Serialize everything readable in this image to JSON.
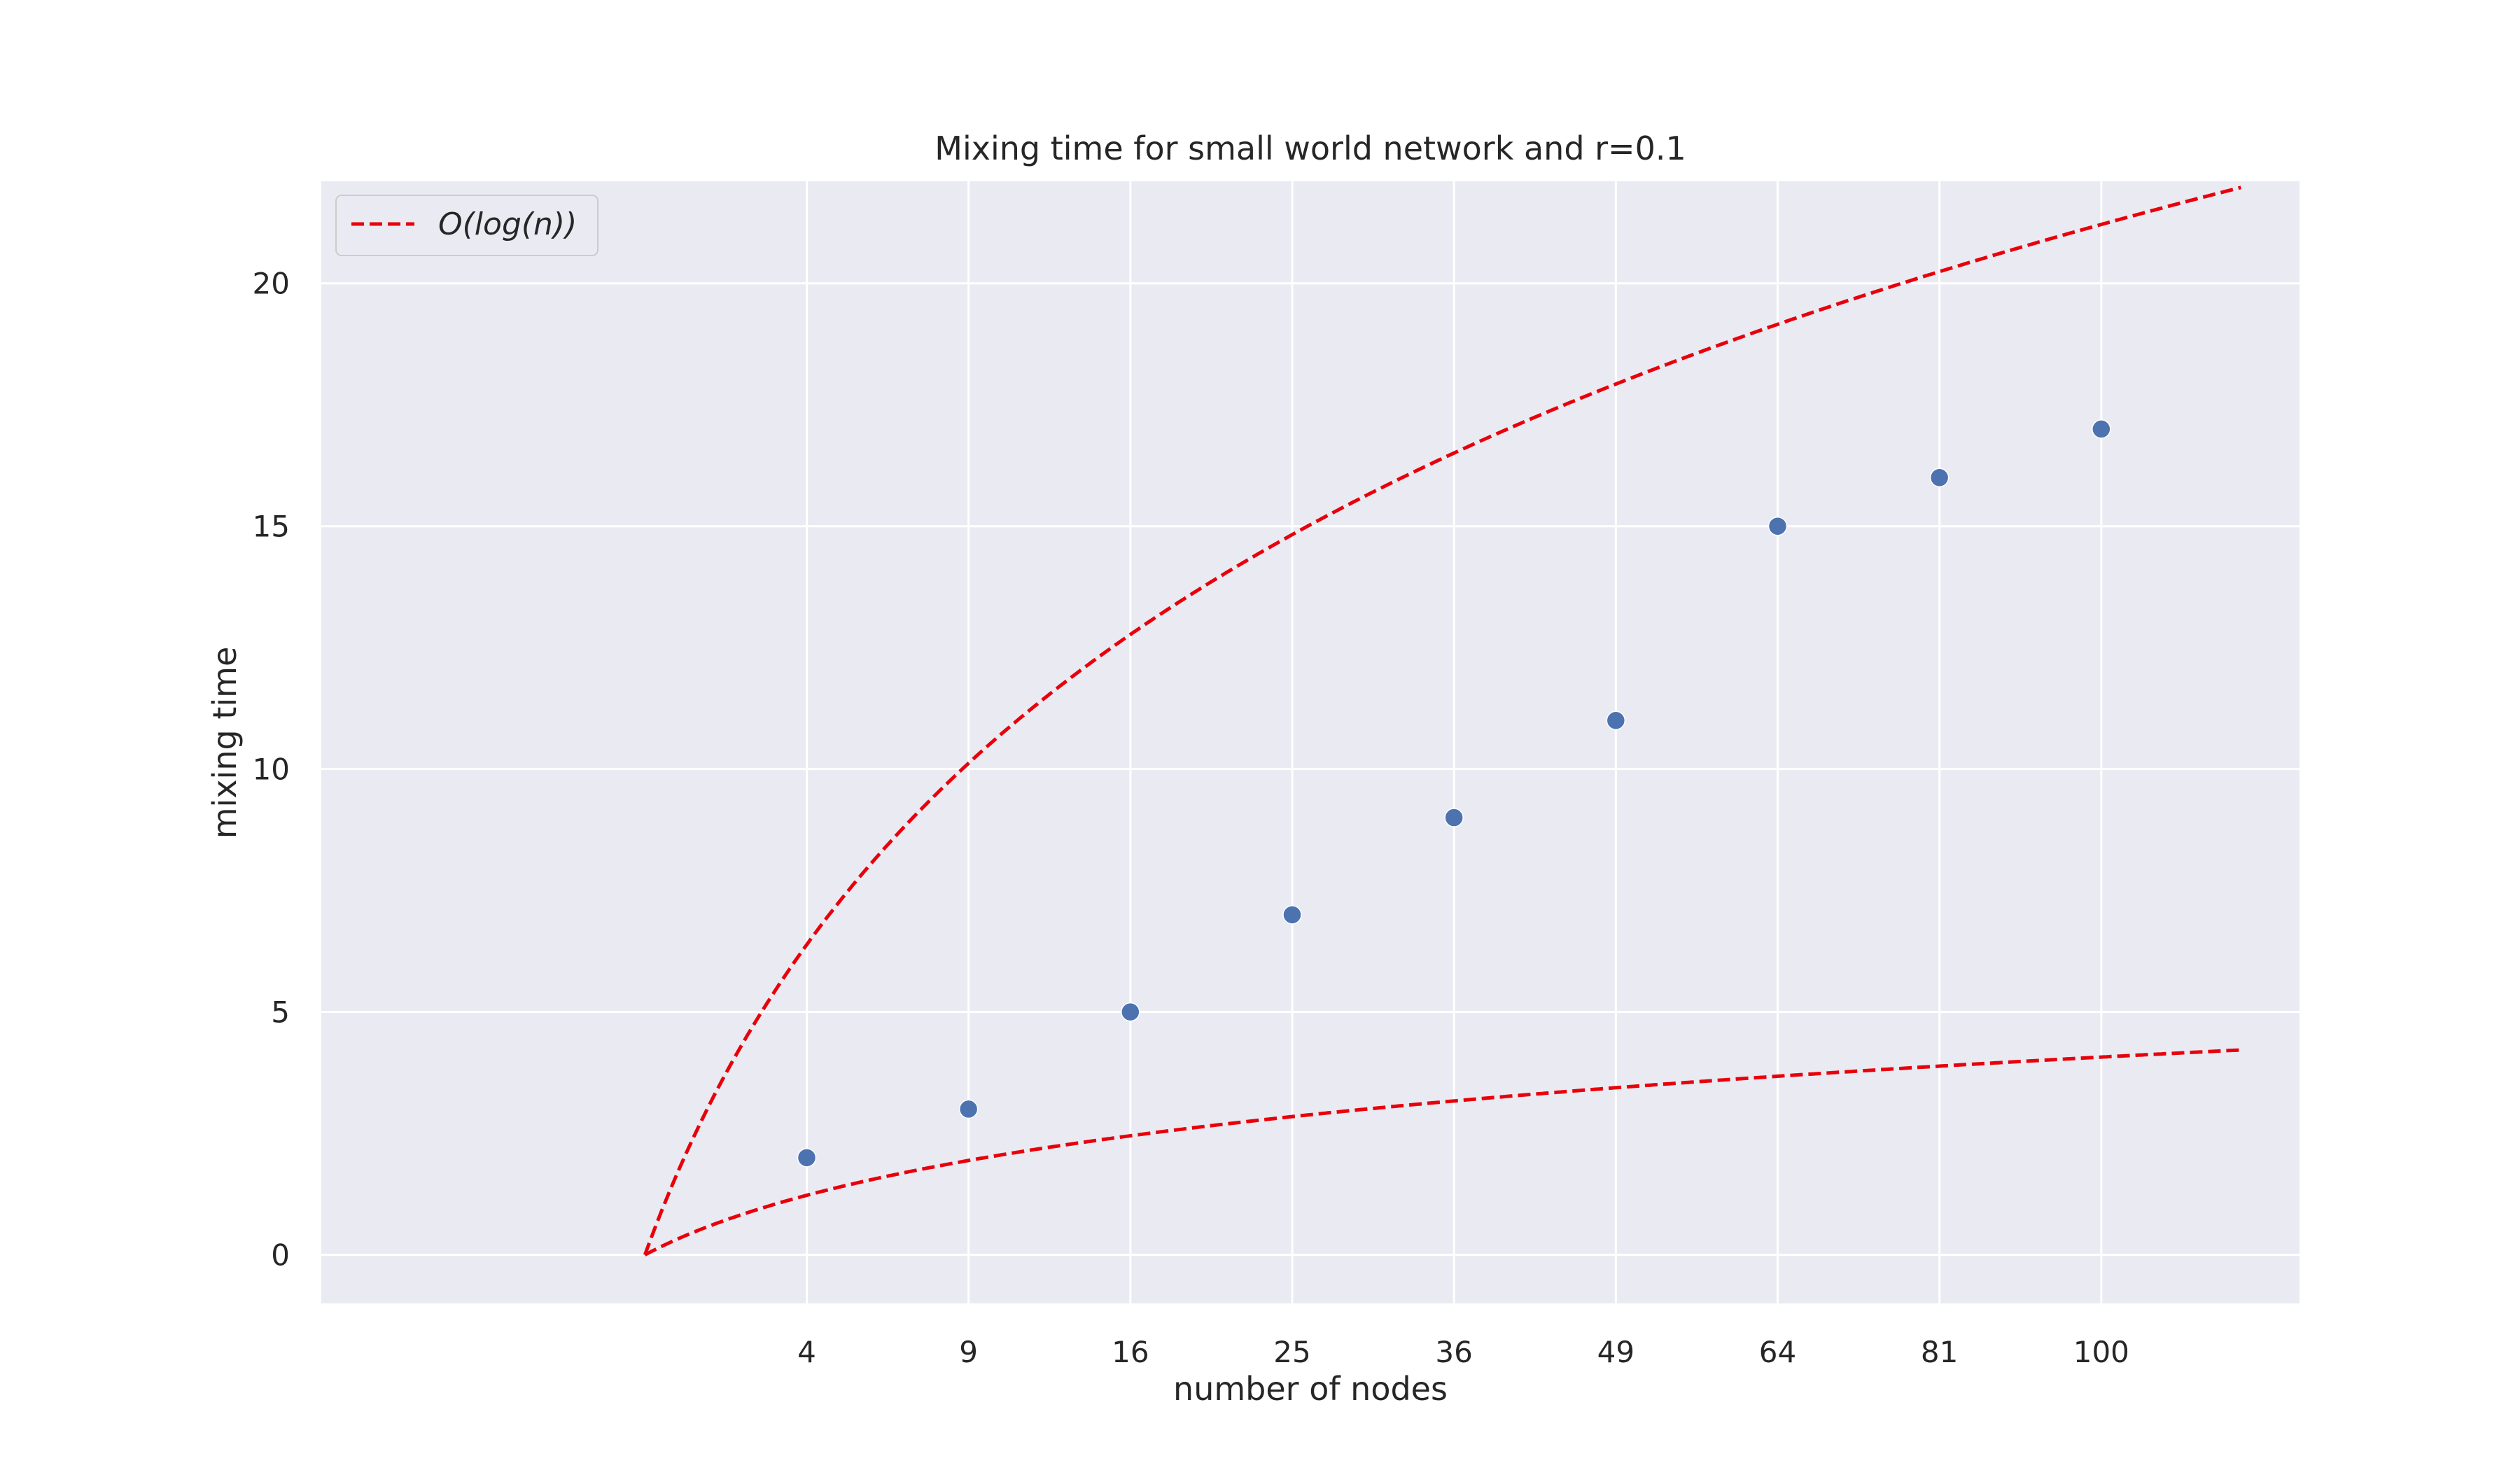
{
  "chart_data": {
    "type": "scatter",
    "title": "Mixing time for small world network and r=0.1",
    "xlabel": "number of nodes",
    "ylabel": "mixing time",
    "x_scale": "sqrt",
    "x_ticks": [
      4,
      9,
      16,
      25,
      36,
      49,
      64,
      81,
      100
    ],
    "y_ticks": [
      0,
      5,
      10,
      15,
      20
    ],
    "xlim": [
      -1.0,
      126
    ],
    "ylim": [
      -1.0,
      22.1
    ],
    "grid": true,
    "legend_position": "top-left",
    "series": [
      {
        "name": "",
        "kind": "scatter",
        "color": "#4c72b0",
        "x": [
          4,
          9,
          16,
          25,
          36,
          49,
          64,
          81,
          100
        ],
        "y": [
          2,
          3,
          5,
          7,
          9,
          11,
          15,
          16,
          17
        ]
      },
      {
        "name": "O(log(n))",
        "kind": "dashed-line",
        "color": "#e8000b",
        "function": "4.606 * log(x)",
        "x_range": [
          1,
          118
        ],
        "legend": true
      },
      {
        "name": "",
        "kind": "dashed-line",
        "color": "#e8000b",
        "function": "0.884 * log(x)",
        "x_range": [
          1,
          118
        ],
        "legend": false
      }
    ],
    "legend": {
      "label": "O(log(n))"
    }
  }
}
